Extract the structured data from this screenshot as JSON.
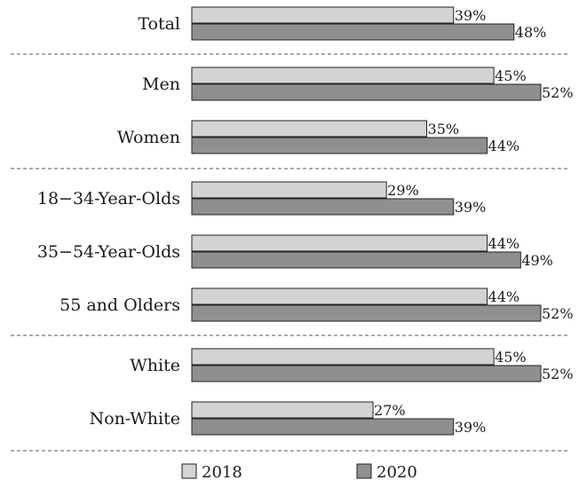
{
  "chart_data": {
    "type": "bar",
    "orientation": "horizontal",
    "categories": [
      "Total",
      "Men",
      "Women",
      "18−34-Year-Olds",
      "35−54-Year-Olds",
      "55 and Olders",
      "White",
      "Non-White"
    ],
    "groups": [
      [
        "Total"
      ],
      [
        "Men",
        "Women"
      ],
      [
        "18−34-Year-Olds",
        "35−54-Year-Olds",
        "55 and Olders"
      ],
      [
        "White",
        "Non-White"
      ]
    ],
    "series": [
      {
        "name": "2018",
        "values": [
          39,
          45,
          35,
          29,
          44,
          44,
          45,
          27
        ],
        "labels": [
          "39%",
          "45%",
          "35%",
          "29%",
          "44%",
          "44%",
          "45%",
          "27%"
        ],
        "color": "#d3d3d3"
      },
      {
        "name": "2020",
        "values": [
          48,
          52,
          44,
          39,
          49,
          52,
          52,
          39
        ],
        "labels": [
          "48%",
          "52%",
          "44%",
          "39%",
          "49%",
          "52%",
          "52%",
          "39%"
        ],
        "color": "#8f8f8f"
      }
    ],
    "xlim": [
      0,
      52
    ],
    "grid": false,
    "legend": "bottom"
  }
}
